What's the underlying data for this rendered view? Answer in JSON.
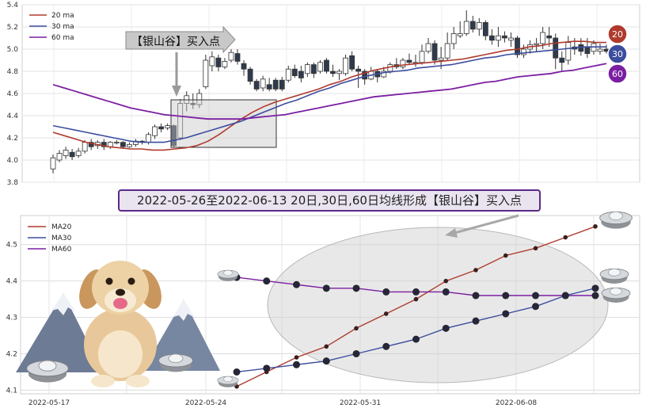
{
  "chart_data": [
    {
      "type": "candlestick",
      "ylim": [
        3.8,
        5.4
      ],
      "yticks": [
        "3.8",
        "4.0",
        "4.2",
        "4.4",
        "4.6",
        "4.8",
        "5.0",
        "5.2",
        "5.4"
      ],
      "legend": [
        "20 ma",
        "30 ma",
        "60 ma"
      ],
      "legend_position": "top-left",
      "badges": [
        "20",
        "30",
        "60"
      ],
      "callout": "【银山谷】买入点",
      "candles": [
        [
          3.92,
          4.02,
          4.05,
          3.88
        ],
        [
          4.0,
          4.06,
          4.09,
          3.98
        ],
        [
          4.04,
          4.09,
          4.12,
          4.01
        ],
        [
          4.07,
          4.03,
          4.1,
          4.0
        ],
        [
          4.04,
          4.08,
          4.11,
          4.02
        ],
        [
          4.08,
          4.16,
          4.18,
          4.06
        ],
        [
          4.16,
          4.12,
          4.19,
          4.09
        ],
        [
          4.13,
          4.16,
          4.18,
          4.1
        ],
        [
          4.16,
          4.12,
          4.19,
          4.09
        ],
        [
          4.12,
          4.16,
          4.17,
          4.1
        ],
        [
          4.16,
          4.16,
          4.18,
          4.14
        ],
        [
          4.16,
          4.12,
          4.17,
          4.1
        ],
        [
          4.12,
          4.14,
          4.16,
          4.11
        ],
        [
          4.14,
          4.17,
          4.19,
          4.12
        ],
        [
          4.17,
          4.16,
          4.18,
          4.14
        ],
        [
          4.16,
          4.23,
          4.25,
          4.14
        ],
        [
          4.22,
          4.3,
          4.32,
          4.19
        ],
        [
          4.3,
          4.28,
          4.33,
          4.25
        ],
        [
          4.29,
          4.31,
          4.33,
          4.27
        ],
        [
          4.31,
          4.13,
          4.32,
          4.11
        ],
        [
          4.2,
          4.51,
          4.55,
          4.18
        ],
        [
          4.51,
          4.58,
          4.62,
          4.44
        ],
        [
          4.51,
          4.5,
          4.6,
          4.46
        ],
        [
          4.5,
          4.6,
          4.64,
          4.47
        ],
        [
          4.66,
          4.9,
          4.95,
          4.64
        ],
        [
          4.85,
          4.93,
          4.98,
          4.8
        ],
        [
          4.92,
          4.84,
          4.95,
          4.8
        ],
        [
          4.84,
          4.89,
          4.92,
          4.82
        ],
        [
          4.9,
          4.97,
          5.0,
          4.88
        ],
        [
          4.96,
          4.89,
          5.0,
          4.86
        ],
        [
          4.87,
          4.82,
          4.9,
          4.76
        ],
        [
          4.82,
          4.71,
          4.84,
          4.68
        ],
        [
          4.71,
          4.64,
          4.73,
          4.62
        ],
        [
          4.65,
          4.73,
          4.76,
          4.62
        ],
        [
          4.68,
          4.64,
          4.74,
          4.62
        ],
        [
          4.72,
          4.64,
          4.74,
          4.62
        ],
        [
          4.72,
          4.64,
          4.75,
          4.62
        ],
        [
          4.72,
          4.82,
          4.85,
          4.7
        ],
        [
          4.82,
          4.76,
          4.86,
          4.74
        ],
        [
          4.8,
          4.74,
          4.85,
          4.7
        ],
        [
          4.78,
          4.86,
          4.88,
          4.75
        ],
        [
          4.86,
          4.78,
          4.88,
          4.74
        ],
        [
          4.8,
          4.88,
          4.9,
          4.78
        ],
        [
          4.9,
          4.8,
          4.92,
          4.78
        ],
        [
          4.8,
          4.78,
          4.86,
          4.75
        ],
        [
          4.78,
          4.8,
          4.82,
          4.72
        ],
        [
          4.78,
          4.92,
          4.95,
          4.76
        ],
        [
          4.94,
          4.82,
          4.98,
          4.8
        ],
        [
          4.82,
          4.8,
          4.85,
          4.65
        ],
        [
          4.8,
          4.73,
          4.82,
          4.68
        ],
        [
          4.73,
          4.8,
          4.84,
          4.72
        ],
        [
          4.8,
          4.75,
          4.82,
          4.7
        ],
        [
          4.75,
          4.8,
          4.84,
          4.74
        ],
        [
          4.8,
          4.86,
          4.88,
          4.78
        ],
        [
          4.86,
          4.84,
          4.92,
          4.82
        ],
        [
          4.84,
          4.9,
          4.92,
          4.82
        ],
        [
          4.9,
          4.88,
          4.96,
          4.86
        ],
        [
          4.88,
          4.88,
          4.95,
          4.84
        ],
        [
          4.88,
          4.98,
          5.04,
          4.86
        ],
        [
          4.98,
          5.05,
          5.1,
          4.96
        ],
        [
          5.05,
          4.9,
          5.08,
          4.86
        ],
        [
          4.9,
          4.92,
          5.02,
          4.82
        ],
        [
          4.92,
          5.05,
          5.15,
          4.9
        ],
        [
          5.05,
          5.14,
          5.2,
          5.0
        ],
        [
          5.12,
          5.14,
          5.25,
          5.1
        ],
        [
          5.14,
          5.25,
          5.35,
          5.12
        ],
        [
          5.25,
          5.18,
          5.3,
          5.15
        ],
        [
          5.18,
          5.24,
          5.28,
          5.12
        ],
        [
          5.24,
          5.12,
          5.26,
          5.08
        ],
        [
          5.12,
          5.08,
          5.18,
          5.04
        ],
        [
          5.08,
          5.12,
          5.2,
          5.02
        ],
        [
          5.12,
          5.1,
          5.16,
          5.06
        ],
        [
          5.08,
          5.1,
          5.15,
          5.02
        ],
        [
          5.1,
          4.95,
          5.12,
          4.92
        ],
        [
          4.95,
          5.0,
          5.04,
          4.92
        ],
        [
          5.0,
          5.04,
          5.08,
          4.96
        ],
        [
          5.04,
          5.05,
          5.1,
          4.98
        ],
        [
          5.05,
          5.15,
          5.2,
          5.0
        ],
        [
          5.12,
          5.1,
          5.2,
          5.02
        ],
        [
          5.1,
          4.92,
          5.14,
          4.82
        ],
        [
          4.92,
          4.88,
          4.98,
          4.8
        ],
        [
          4.9,
          5.06,
          5.12,
          4.86
        ],
        [
          5.02,
          5.0,
          5.1,
          4.95
        ],
        [
          5.04,
          4.98,
          5.1,
          4.94
        ],
        [
          5.02,
          4.96,
          5.1,
          4.92
        ],
        [
          4.98,
          5.05,
          5.08,
          4.95
        ],
        [
          4.98,
          5.0,
          5.05,
          4.95
        ],
        [
          5.0,
          4.98,
          5.04,
          4.96
        ]
      ],
      "ma20": [
        4.25,
        4.22,
        4.19,
        4.16,
        4.14,
        4.12,
        4.11,
        4.1,
        4.1,
        4.09,
        4.09,
        4.1,
        4.11,
        4.13,
        4.17,
        4.23,
        4.3,
        4.37,
        4.43,
        4.48,
        4.52,
        4.55,
        4.58,
        4.61,
        4.64,
        4.68,
        4.71,
        4.75,
        4.78,
        4.81,
        4.83,
        4.85,
        4.86,
        4.87,
        4.88,
        4.89,
        4.9,
        4.91,
        4.93,
        4.95,
        4.97,
        4.99,
        5.0,
        5.02,
        5.03,
        5.05,
        5.06,
        5.07,
        5.07,
        5.06,
        5.06
      ],
      "ma30": [
        4.31,
        4.29,
        4.27,
        4.25,
        4.23,
        4.21,
        4.19,
        4.17,
        4.16,
        4.16,
        4.16,
        4.18,
        4.2,
        4.23,
        4.26,
        4.29,
        4.32,
        4.35,
        4.39,
        4.43,
        4.47,
        4.51,
        4.54,
        4.58,
        4.62,
        4.65,
        4.69,
        4.72,
        4.75,
        4.77,
        4.79,
        4.8,
        4.81,
        4.83,
        4.84,
        4.85,
        4.86,
        4.88,
        4.9,
        4.92,
        4.93,
        4.95,
        4.96,
        4.97,
        4.98,
        4.99,
        5.0,
        5.01,
        5.02,
        5.02,
        5.02
      ],
      "ma60": [
        4.68,
        4.65,
        4.62,
        4.59,
        4.56,
        4.53,
        4.5,
        4.47,
        4.45,
        4.43,
        4.41,
        4.4,
        4.39,
        4.38,
        4.37,
        4.37,
        4.37,
        4.37,
        4.38,
        4.39,
        4.4,
        4.41,
        4.43,
        4.45,
        4.47,
        4.49,
        4.51,
        4.53,
        4.55,
        4.57,
        4.58,
        4.59,
        4.6,
        4.61,
        4.62,
        4.63,
        4.64,
        4.66,
        4.68,
        4.7,
        4.71,
        4.73,
        4.75,
        4.76,
        4.77,
        4.78,
        4.8,
        4.81,
        4.83,
        4.85,
        4.87
      ]
    },
    {
      "type": "line",
      "title": "2022-05-26至2022-06-13 20日,30日,60日均线形成【银山谷】买入点",
      "ylim": [
        4.09,
        4.58
      ],
      "yticks": [
        "4.1",
        "4.2",
        "4.3",
        "4.4",
        "4.5"
      ],
      "xticks": [
        "2022-05-17",
        "2022-05-24",
        "2022-05-31",
        "2022-06-08"
      ],
      "series": [
        {
          "name": "MA20",
          "color": "#b03a2e",
          "values": [
            4.11,
            4.15,
            4.19,
            4.22,
            4.27,
            4.31,
            4.35,
            4.4,
            4.43,
            4.47,
            4.49,
            4.52,
            4.55
          ]
        },
        {
          "name": "MA30",
          "color": "#3c4d9e",
          "values": [
            4.15,
            4.16,
            4.17,
            4.18,
            4.2,
            4.22,
            4.24,
            4.27,
            4.29,
            4.31,
            4.33,
            4.36,
            4.38
          ]
        },
        {
          "name": "MA60",
          "color": "#7b1fa2",
          "values": [
            4.41,
            4.4,
            4.39,
            4.38,
            4.38,
            4.37,
            4.37,
            4.37,
            4.36,
            4.36,
            4.36,
            4.36,
            4.36
          ]
        }
      ],
      "legend_position": "top-left"
    }
  ]
}
